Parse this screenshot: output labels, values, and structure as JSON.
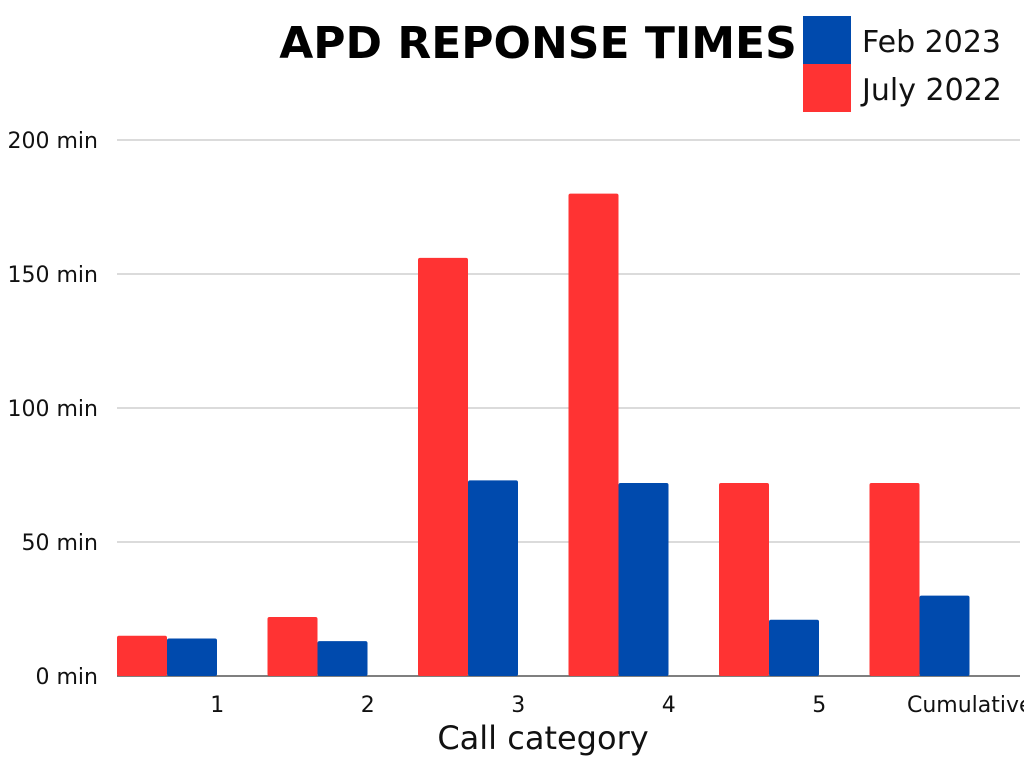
{
  "chart_data": {
    "type": "bar",
    "title": "APD REPONSE TIMES",
    "xlabel": "Call category",
    "ylabel": "",
    "categories": [
      "1",
      "2",
      "3",
      "4",
      "5",
      "Cumulative"
    ],
    "series": [
      {
        "name": "July 2022",
        "color": "#ff3333",
        "values": [
          15,
          22,
          156,
          180,
          72,
          72
        ]
      },
      {
        "name": "Feb 2023",
        "color": "#004aad",
        "values": [
          14,
          13,
          73,
          72,
          21,
          30
        ]
      }
    ],
    "ylim": [
      0,
      200
    ],
    "yticks": [
      0,
      50,
      100,
      150,
      200
    ],
    "ytick_labels": [
      "0 min",
      "50 min",
      "100 min",
      "150 min",
      "200 min"
    ],
    "grid": true,
    "legend_position": "top-right",
    "legend_order": [
      "Feb 2023",
      "July 2022"
    ]
  }
}
